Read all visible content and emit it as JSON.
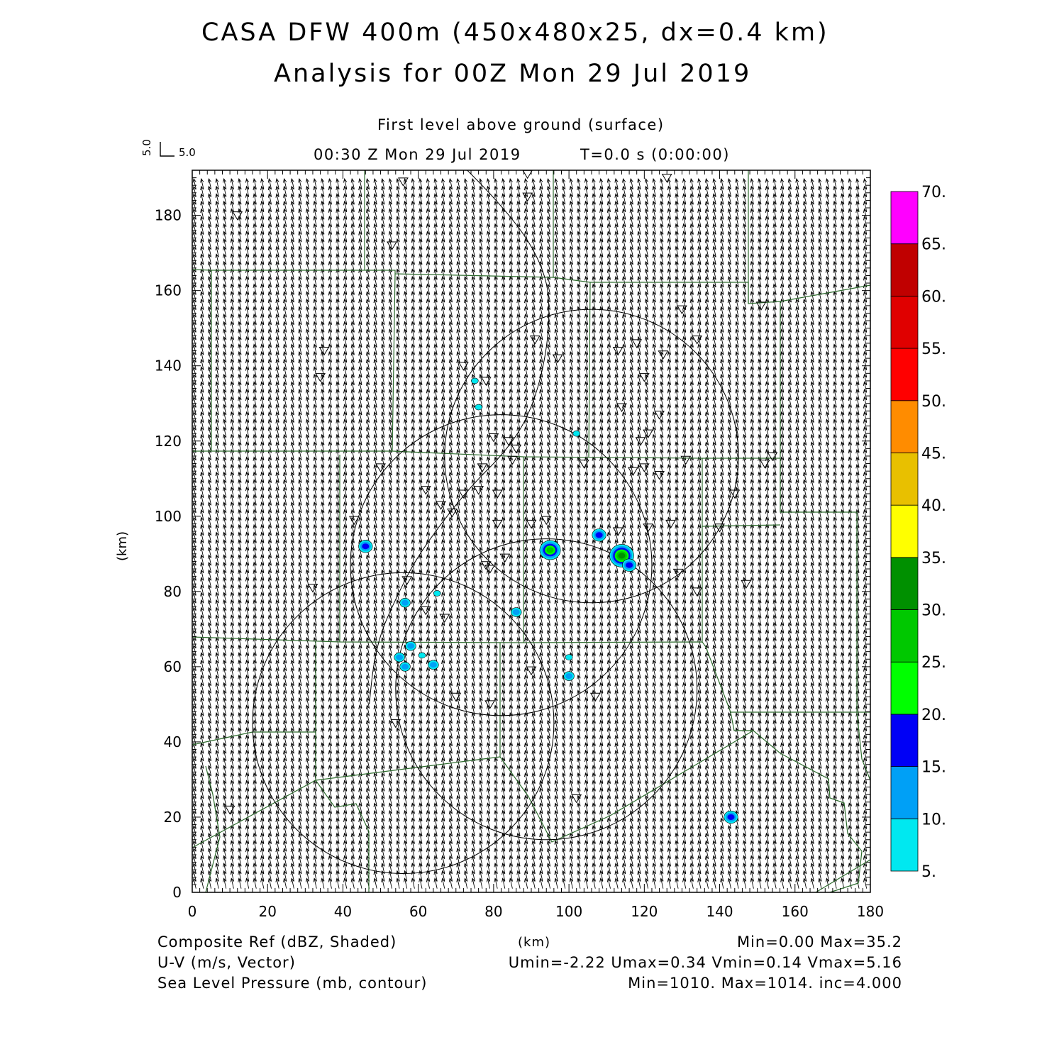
{
  "header": {
    "title_line1": "CASA DFW 400m (450x480x25, dx=0.4 km)",
    "title_line2": "Analysis for 00Z Mon 29 Jul 2019",
    "level": "First level above ground (surface)",
    "valid_time": "00:30 Z Mon 29 Jul 2019",
    "forecast_time": "T=0.0 s (0:00:00)",
    "ref_vector_u": "5.0",
    "ref_vector_v": "5.0"
  },
  "footer": {
    "field1": "Composite Ref (dBZ, Shaded)",
    "field2": "U-V (m/s, Vector)",
    "field3": "Sea Level Pressure (mb, contour)",
    "xunits": "(km)",
    "stats1": "Min=0.00 Max=35.2",
    "stats2": "Umin=-2.22 Umax=0.34 Vmin=0.14 Vmax=5.16",
    "stats3": "Min=1010. Max=1014. inc=4.000"
  },
  "colors": {
    "county_lines": "#2e6b2e",
    "frame": "#000000"
  },
  "chart_data": {
    "type": "heatmap",
    "xlabel": "",
    "ylabel": "(km)",
    "xlim": [
      0,
      180
    ],
    "ylim": [
      0,
      192
    ],
    "xticks": [
      0,
      20,
      40,
      60,
      80,
      100,
      120,
      140,
      160,
      180
    ],
    "yticks": [
      0,
      20,
      40,
      60,
      80,
      100,
      120,
      140,
      160,
      180
    ],
    "colorbar": {
      "levels": [
        "5.",
        "10.",
        "15.",
        "20.",
        "25.",
        "30.",
        "35.",
        "40.",
        "45.",
        "50.",
        "55.",
        "60.",
        "65.",
        "70."
      ],
      "colors": [
        "#00e8f0",
        "#00a0f6",
        "#0000f6",
        "#00ff00",
        "#00c800",
        "#009000",
        "#ffff00",
        "#e8c000",
        "#ff8c00",
        "#ff0000",
        "#e00000",
        "#c00000",
        "#ff00ff"
      ]
    },
    "wind_vector": {
      "u_mean": -1.0,
      "v_mean": 4.5,
      "spacing_km": 2.0,
      "umin": -2.22,
      "umax": 0.34,
      "vmin": 0.14,
      "vmax": 5.16
    },
    "radar_rings": [
      {
        "cx": 106,
        "cy": 116,
        "r": 39
      },
      {
        "cx": 82,
        "cy": 87,
        "r": 40
      },
      {
        "cx": 94,
        "cy": 54,
        "r": 40
      },
      {
        "cx": 56,
        "cy": 45,
        "r": 40
      }
    ],
    "pressure_contour": [
      [
        73,
        192
      ],
      [
        85,
        180
      ],
      [
        94,
        165
      ],
      [
        95,
        152
      ],
      [
        93,
        138
      ],
      [
        89,
        126
      ],
      [
        83,
        117
      ],
      [
        74,
        108
      ],
      [
        66,
        98
      ],
      [
        59,
        88
      ],
      [
        54,
        78
      ],
      [
        50,
        69
      ],
      [
        48,
        60
      ],
      [
        47,
        50
      ]
    ],
    "echoes": [
      {
        "x": 46,
        "y": 92,
        "dbz": 15
      },
      {
        "x": 95,
        "y": 91,
        "dbz": 25
      },
      {
        "x": 108,
        "y": 95,
        "dbz": 15
      },
      {
        "x": 114,
        "y": 89.5,
        "dbz": 30
      },
      {
        "x": 116,
        "y": 87,
        "dbz": 15
      },
      {
        "x": 143,
        "y": 20,
        "dbz": 15
      },
      {
        "x": 56.5,
        "y": 77,
        "dbz": 10
      },
      {
        "x": 86,
        "y": 74.5,
        "dbz": 10
      },
      {
        "x": 58,
        "y": 65.5,
        "dbz": 10
      },
      {
        "x": 55,
        "y": 62.5,
        "dbz": 10
      },
      {
        "x": 56.5,
        "y": 60,
        "dbz": 10
      },
      {
        "x": 61,
        "y": 63,
        "dbz": 5
      },
      {
        "x": 64,
        "y": 60.5,
        "dbz": 10
      },
      {
        "x": 100,
        "y": 62.5,
        "dbz": 5
      },
      {
        "x": 100,
        "y": 57.5,
        "dbz": 10
      },
      {
        "x": 65,
        "y": 79.5,
        "dbz": 5
      },
      {
        "x": 76,
        "y": 129,
        "dbz": 5
      },
      {
        "x": 102,
        "y": 122,
        "dbz": 5
      },
      {
        "x": 75,
        "y": 136,
        "dbz": 5
      }
    ],
    "stations": [
      [
        56,
        189
      ],
      [
        89,
        191
      ],
      [
        89,
        185
      ],
      [
        126,
        190
      ],
      [
        12,
        180
      ],
      [
        53,
        172
      ],
      [
        35,
        144
      ],
      [
        34,
        137
      ],
      [
        72,
        140
      ],
      [
        78,
        136
      ],
      [
        91,
        147
      ],
      [
        97,
        142
      ],
      [
        113,
        144
      ],
      [
        118,
        146
      ],
      [
        125,
        143
      ],
      [
        130,
        155
      ],
      [
        134,
        147
      ],
      [
        120,
        137
      ],
      [
        114,
        129
      ],
      [
        124,
        127
      ],
      [
        121,
        122
      ],
      [
        119,
        120
      ],
      [
        80,
        121
      ],
      [
        84,
        120
      ],
      [
        86,
        118
      ],
      [
        77,
        113
      ],
      [
        85,
        115
      ],
      [
        104,
        114
      ],
      [
        117,
        112
      ],
      [
        120,
        113
      ],
      [
        124,
        111
      ],
      [
        131,
        115
      ],
      [
        151,
        156
      ],
      [
        152,
        114
      ],
      [
        154,
        116
      ],
      [
        144,
        106
      ],
      [
        50,
        113
      ],
      [
        43,
        99
      ],
      [
        62,
        107
      ],
      [
        66,
        103
      ],
      [
        69,
        101
      ],
      [
        72,
        106
      ],
      [
        76,
        107
      ],
      [
        81,
        106
      ],
      [
        81,
        98
      ],
      [
        90,
        98
      ],
      [
        94,
        99
      ],
      [
        113,
        96
      ],
      [
        121,
        97
      ],
      [
        127,
        98
      ],
      [
        140,
        97
      ],
      [
        83,
        89
      ],
      [
        78,
        87
      ],
      [
        79,
        86
      ],
      [
        129,
        85
      ],
      [
        134,
        80
      ],
      [
        147,
        82
      ],
      [
        32,
        81
      ],
      [
        57,
        83
      ],
      [
        62,
        75
      ],
      [
        67,
        73
      ],
      [
        90,
        59
      ],
      [
        70,
        52
      ],
      [
        79,
        50
      ],
      [
        107,
        52
      ],
      [
        54,
        45
      ],
      [
        102,
        25
      ],
      [
        10,
        22
      ]
    ]
  }
}
